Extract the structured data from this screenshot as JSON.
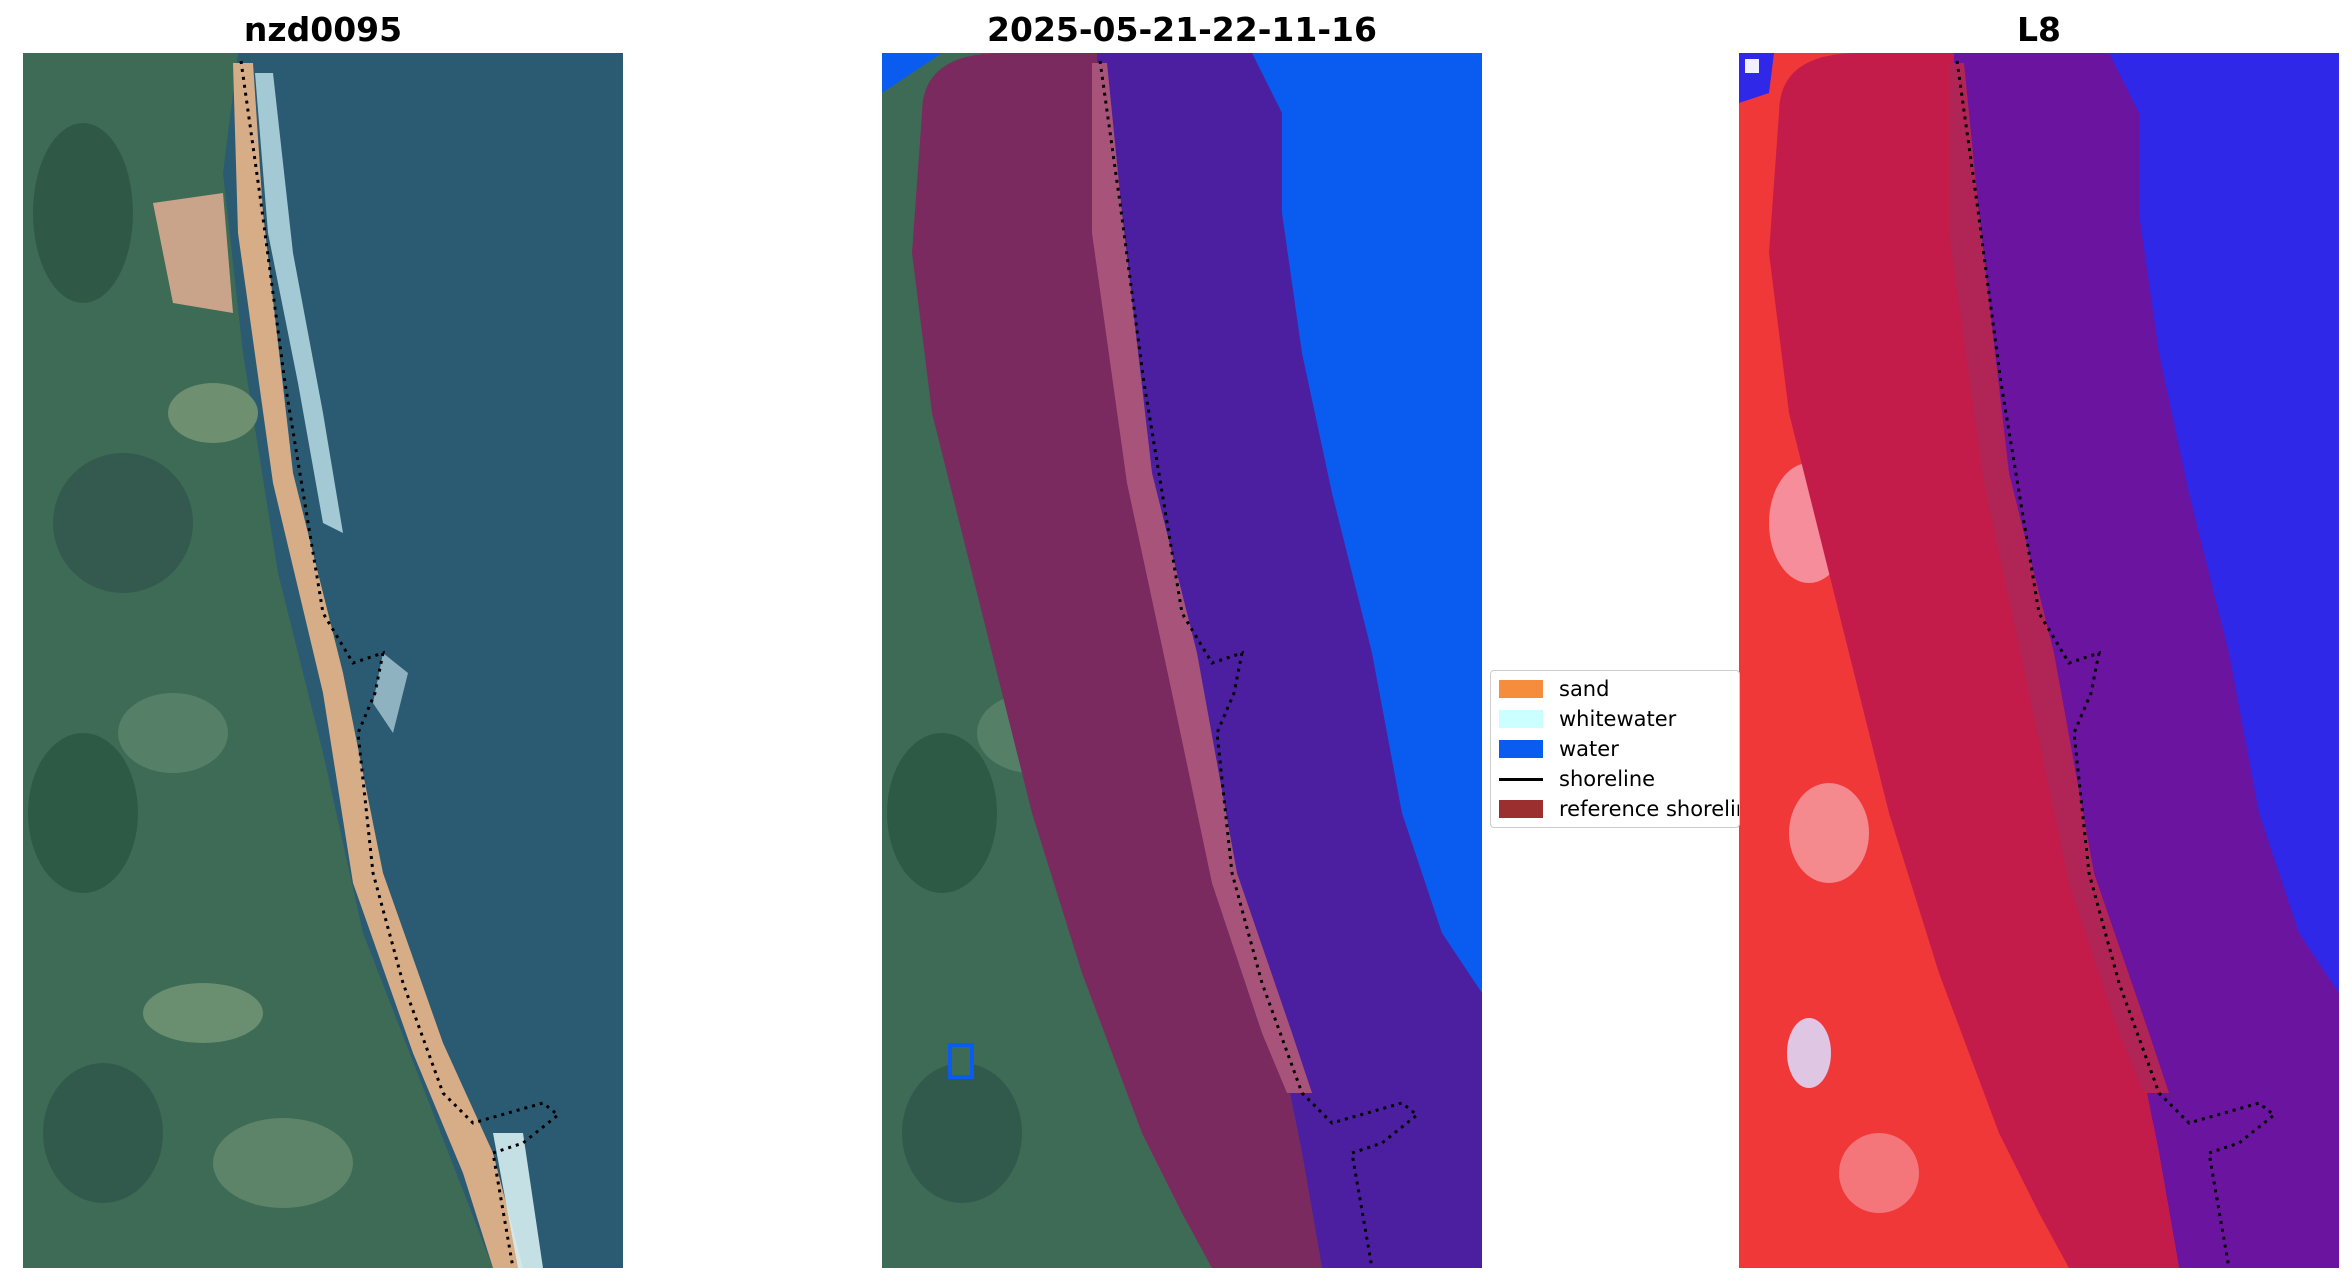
{
  "panels": [
    {
      "title": "nzd0095"
    },
    {
      "title": "2025-05-21-22-11-16"
    },
    {
      "title": "L8"
    }
  ],
  "legend": {
    "items": [
      {
        "label": "sand",
        "color": "#f58d3c"
      },
      {
        "label": "whitewater",
        "color": "#ccffff"
      },
      {
        "label": "water",
        "color": "#0a5cf0"
      },
      {
        "label": "shoreline",
        "color": "#000000"
      },
      {
        "label": "reference shoreline",
        "color": "#9b2f2f"
      }
    ]
  },
  "colors": {
    "ocean_rgb": "#2a5a72",
    "land_rgb": "#3f6f55",
    "beach": "#d9b089",
    "surf": "#bfe3ea",
    "buffer_overlay": "#7a2a5e",
    "water_class": "#0a5cf0",
    "water_in_buffer": "#4b1fa0",
    "index_land": "#f03232",
    "index_buffer": "#c01c48",
    "index_water": "#2f28e8"
  }
}
